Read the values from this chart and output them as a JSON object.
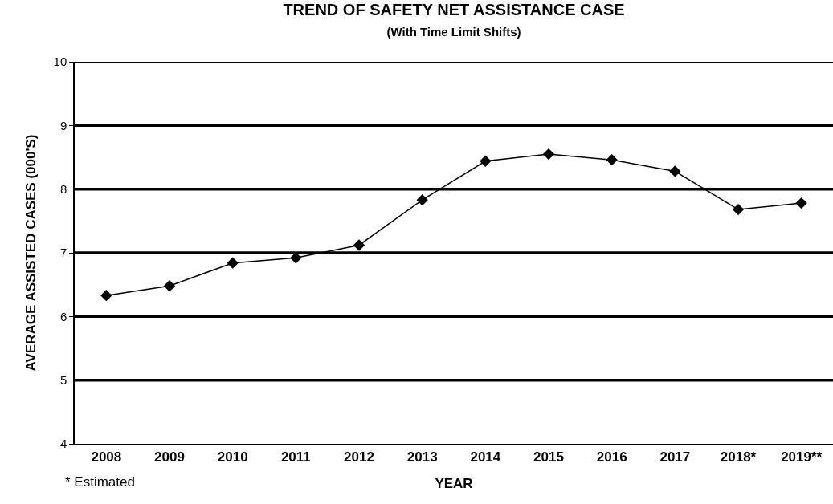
{
  "chart_data": {
    "type": "line",
    "title": "TREND OF SAFETY NET ASSISTANCE CASE",
    "subtitle": "(With Time Limit Shifts)",
    "xlabel": "YEAR",
    "ylabel": "AVERAGE ASSISTED CASES (000'S)",
    "categories": [
      "2008",
      "2009",
      "2010",
      "2011",
      "2012",
      "2013",
      "2014",
      "2015",
      "2016",
      "2017",
      "2018*",
      "2019**"
    ],
    "series": [
      {
        "color": "#000000",
        "values": [
          6.33,
          6.48,
          6.84,
          6.92,
          7.12,
          7.83,
          8.44,
          8.55,
          8.46,
          8.28,
          7.68,
          7.78
        ]
      }
    ],
    "ylim": [
      4,
      10
    ],
    "yticks": [
      4,
      5,
      6,
      7,
      8,
      9,
      10
    ],
    "grid": "y",
    "marker": "diamond",
    "line_style": "solid",
    "annotations": [
      "* Estimated"
    ]
  }
}
